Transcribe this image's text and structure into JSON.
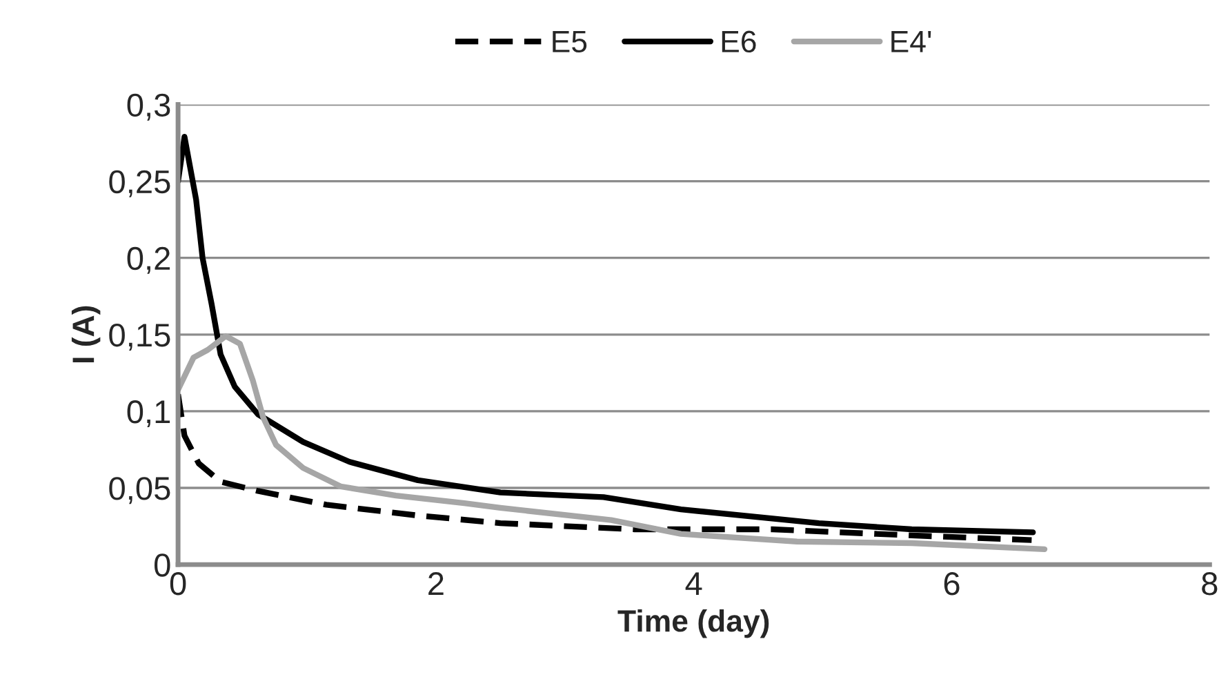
{
  "chart_data": {
    "type": "line",
    "xlabel": "Time (day)",
    "ylabel": "I (A)",
    "xlim": [
      0,
      8
    ],
    "xticks": [
      0,
      2,
      4,
      6,
      8
    ],
    "ylim": [
      0,
      0.3
    ],
    "yticks": [
      {
        "value": 0,
        "label": "0"
      },
      {
        "value": 0.05,
        "label": "0,05"
      },
      {
        "value": 0.1,
        "label": "0,1"
      },
      {
        "value": 0.15,
        "label": "0,15"
      },
      {
        "value": 0.2,
        "label": "0,2"
      },
      {
        "value": 0.25,
        "label": "0,25"
      },
      {
        "value": 0.3,
        "label": "0,3"
      }
    ],
    "grid": "y",
    "legend": "top",
    "marker": "none",
    "series": [
      {
        "name": "E5",
        "color": "#000000",
        "line_style": "dashed",
        "x": [
          0,
          0.05,
          0.16,
          0.33,
          0.62,
          1.15,
          1.86,
          2.5,
          3.54,
          4.61,
          5.69,
          6.62
        ],
        "values": [
          0.111,
          0.084,
          0.066,
          0.054,
          0.048,
          0.039,
          0.032,
          0.027,
          0.023,
          0.023,
          0.019,
          0.016
        ]
      },
      {
        "name": "E6",
        "color": "#000000",
        "line_style": "solid",
        "x": [
          0,
          0.05,
          0.14,
          0.19,
          0.26,
          0.33,
          0.44,
          0.62,
          0.97,
          1.33,
          1.86,
          2.5,
          3.3,
          3.9,
          4.97,
          5.69,
          6.63
        ],
        "values": [
          0.25,
          0.279,
          0.238,
          0.2,
          0.17,
          0.137,
          0.116,
          0.098,
          0.08,
          0.067,
          0.055,
          0.047,
          0.044,
          0.036,
          0.027,
          0.023,
          0.021
        ]
      },
      {
        "name": "E4'",
        "color": "#a6a6a6",
        "line_style": "solid",
        "x": [
          0,
          0.12,
          0.23,
          0.37,
          0.48,
          0.58,
          0.66,
          0.76,
          0.97,
          1.26,
          1.69,
          2.22,
          2.5,
          3.36,
          3.9,
          4.8,
          5.69,
          6.72
        ],
        "values": [
          0.114,
          0.135,
          0.14,
          0.149,
          0.144,
          0.12,
          0.096,
          0.078,
          0.063,
          0.051,
          0.045,
          0.04,
          0.037,
          0.029,
          0.02,
          0.015,
          0.014,
          0.01
        ]
      }
    ]
  }
}
